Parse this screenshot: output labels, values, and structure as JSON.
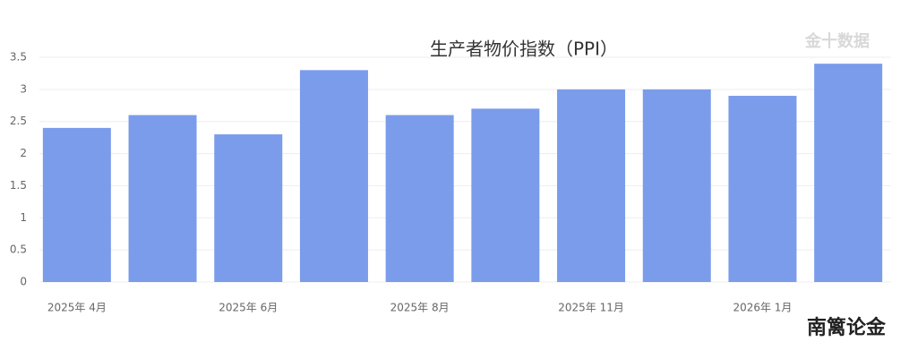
{
  "chart_data": {
    "type": "bar",
    "title": "生产者物价指数（PPI）",
    "categories": [
      "2025年 4月",
      null,
      "2025年 6月",
      null,
      "2025年 8月",
      null,
      "2025年 11月",
      null,
      "2026年 1月",
      null
    ],
    "values": [
      2.4,
      2.6,
      2.3,
      3.3,
      2.6,
      2.7,
      3.0,
      3.0,
      2.9,
      3.4
    ],
    "color": "#7b9ceb",
    "ylim": [
      0,
      3.5
    ],
    "yticks": [
      0,
      0.5,
      1,
      1.5,
      2,
      2.5,
      3,
      3.5
    ],
    "grid": true
  },
  "watermarks": [
    "金十数据",
    "南篱论金"
  ]
}
